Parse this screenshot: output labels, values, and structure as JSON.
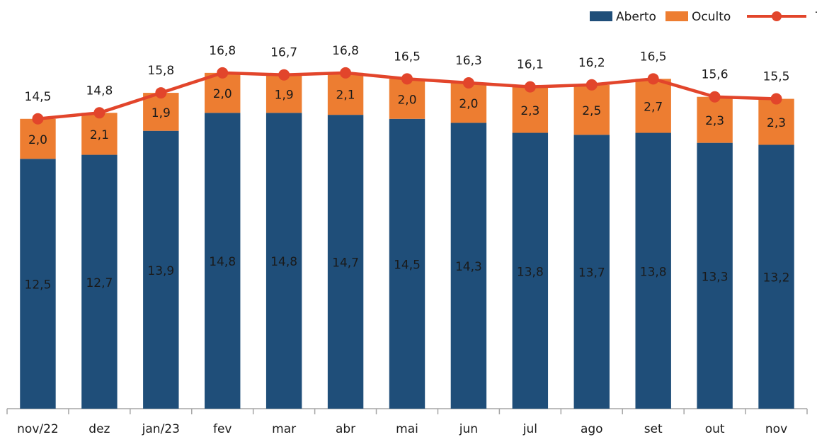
{
  "chart_data": {
    "type": "bar",
    "stacked": true,
    "categories": [
      "nov/22",
      "dez",
      "jan/23",
      "fev",
      "mar",
      "abr",
      "mai",
      "jun",
      "jul",
      "ago",
      "set",
      "out",
      "nov"
    ],
    "series": [
      {
        "name": "Aberto",
        "type": "bar",
        "color": "#1f4e79",
        "values": [
          12.5,
          12.7,
          13.9,
          14.8,
          14.8,
          14.7,
          14.5,
          14.3,
          13.8,
          13.7,
          13.8,
          13.3,
          13.2
        ],
        "value_labels": [
          "12,5",
          "12,7",
          "13,9",
          "14,8",
          "14,8",
          "14,7",
          "14,5",
          "14,3",
          "13,8",
          "13,7",
          "13,8",
          "13,3",
          "13,2"
        ]
      },
      {
        "name": "Oculto",
        "type": "bar",
        "color": "#ed7d31",
        "values": [
          2.0,
          2.1,
          1.9,
          2.0,
          1.9,
          2.1,
          2.0,
          2.0,
          2.3,
          2.5,
          2.7,
          2.3,
          2.3
        ],
        "value_labels": [
          "2,0",
          "2,1",
          "1,9",
          "2,0",
          "1,9",
          "2,1",
          "2,0",
          "2,0",
          "2,3",
          "2,5",
          "2,7",
          "2,3",
          "2,3"
        ]
      },
      {
        "name": "Total",
        "type": "line",
        "color": "#e2452b",
        "values": [
          14.5,
          14.8,
          15.8,
          16.8,
          16.7,
          16.8,
          16.5,
          16.3,
          16.1,
          16.2,
          16.5,
          15.6,
          15.5
        ],
        "value_labels": [
          "14,5",
          "14,8",
          "15,8",
          "16,8",
          "16,7",
          "16,8",
          "16,5",
          "16,3",
          "16,1",
          "16,2",
          "16,5",
          "15,6",
          "15,5"
        ]
      }
    ],
    "ylim": [
      0,
      18
    ],
    "legend": "top-right"
  }
}
